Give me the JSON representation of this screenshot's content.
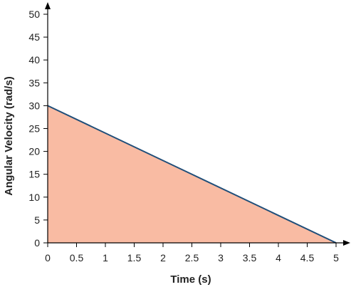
{
  "chart_data": {
    "type": "area",
    "title": "",
    "xlabel": "Time (s)",
    "ylabel": "Angular Velocity (rad/s)",
    "xlim": [
      0,
      5
    ],
    "ylim": [
      0,
      50
    ],
    "x_ticks": [
      "0",
      "0.5",
      "1",
      "1.5",
      "2",
      "2.5",
      "3",
      "3.5",
      "4",
      "4.5",
      "5"
    ],
    "y_ticks": [
      "0",
      "5",
      "10",
      "15",
      "20",
      "25",
      "30",
      "35",
      "40",
      "45",
      "50"
    ],
    "grid": false,
    "legend": "none",
    "series": [
      {
        "x": [
          0,
          5
        ],
        "y": [
          30,
          0
        ]
      }
    ],
    "colors": {
      "fill": "#f9bba3",
      "line": "#1f4e79",
      "axis": "#000000"
    }
  }
}
